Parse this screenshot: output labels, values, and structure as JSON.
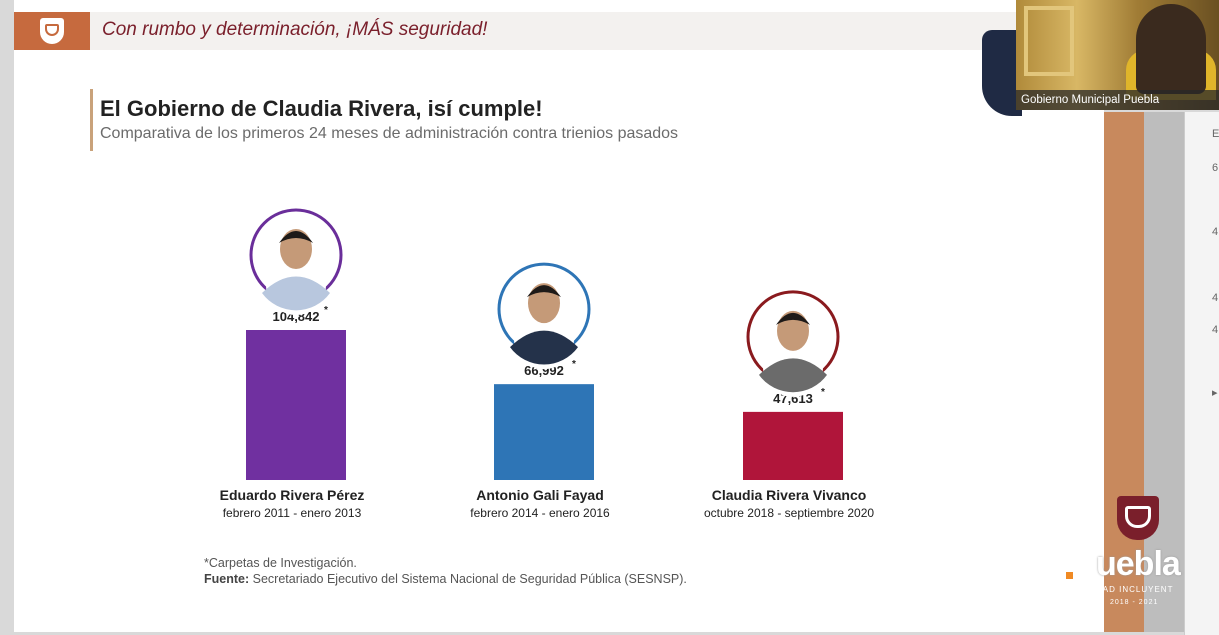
{
  "header": {
    "slogan": "Con rumbo y determinación, ¡MÁS seguridad!"
  },
  "slide": {
    "title": "El Gobierno de Claudia Rivera, isí cumple!",
    "subtitle": "Comparativa de los primeros 24 meses de administración contra trienios pasados"
  },
  "chart_data": {
    "type": "bar",
    "title": "El Gobierno de Claudia Rivera, isí cumple!",
    "subtitle": "Comparativa de los primeros 24 meses de administración contra trienios pasados",
    "categories": [
      "Eduardo Rivera Pérez",
      "Antonio Gali Fayad",
      "Claudia Rivera Vivanco"
    ],
    "periods": [
      "febrero 2011 - enero 2013",
      "febrero 2014 - enero 2016",
      "octubre 2018 - septiembre 2020"
    ],
    "values": [
      104842,
      66992,
      47613
    ],
    "value_labels": [
      "104,842",
      "66,992",
      "47,613"
    ],
    "asterisk": "*",
    "colors": [
      "#7030a0",
      "#2e75b6",
      "#b0153a"
    ],
    "ring_colors": [
      "#6a2e9a",
      "#2e75b6",
      "#8a1a1e"
    ],
    "ylim": [
      0,
      104842
    ],
    "grid": false,
    "xlabel": "",
    "ylabel": ""
  },
  "footnote": {
    "note": "*Carpetas de Investigación.",
    "source_label": "Fuente:",
    "source_text": "Secretariado Ejecutivo del Sistema Nacional de Seguridad Pública (SESNSP)."
  },
  "video": {
    "caption": "Gobierno Municipal Puebla"
  },
  "brand": {
    "word": "uebla",
    "tagline": "DAD INCLUYENT",
    "years": "2018 - 2021"
  },
  "side_glyphs": [
    "E",
    "6",
    "4",
    "4",
    "4",
    "▸"
  ]
}
